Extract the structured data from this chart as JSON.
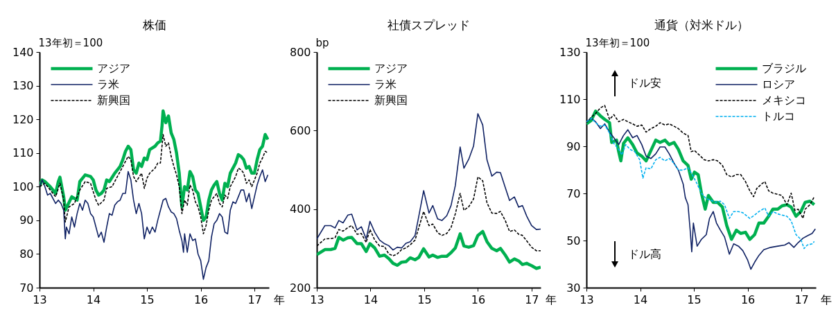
{
  "chart_data": [
    {
      "type": "line",
      "title": "株価",
      "ylabel": "13年初＝100",
      "xlabel": "年",
      "xlim": [
        13,
        17.27
      ],
      "xticks": [
        13,
        14,
        15,
        16,
        17
      ],
      "ylim": [
        70,
        140
      ],
      "yticks": [
        70,
        80,
        90,
        100,
        110,
        120,
        130,
        140
      ],
      "legend": "top left",
      "series": [
        {
          "name": "アジア",
          "color": "#00b050",
          "x": [
            13,
            13.05,
            13.1,
            13.2,
            13.3,
            13.35,
            13.38,
            13.45,
            13.48,
            13.6,
            13.7,
            13.75,
            13.85,
            13.95,
            14,
            14.05,
            14.1,
            14.15,
            14.2,
            14.25,
            14.3,
            14.4,
            14.5,
            14.55,
            14.6,
            14.65,
            14.7,
            14.75,
            14.8,
            14.85,
            14.9,
            14.95,
            15,
            15.05,
            15.15,
            15.2,
            15.25,
            15.28,
            15.3,
            15.35,
            15.4,
            15.45,
            15.5,
            15.55,
            15.6,
            15.65,
            15.7,
            15.75,
            15.8,
            15.85,
            15.9,
            15.95,
            16,
            16.05,
            16.1,
            16.15,
            16.2,
            16.25,
            16.3,
            16.35,
            16.4,
            16.45,
            16.5,
            16.55,
            16.65,
            16.7,
            16.75,
            16.8,
            16.85,
            16.9,
            16.95,
            17,
            17.05,
            17.1,
            17.15,
            17.2,
            17.25
          ],
          "values": [
            100,
            102,
            101.5,
            100,
            98,
            101.5,
            102.8,
            97,
            93,
            97,
            96,
            101.5,
            103.5,
            103,
            102,
            99,
            97.5,
            98,
            99,
            102,
            101.5,
            104,
            106,
            108,
            110.5,
            112,
            111,
            105,
            104,
            107,
            106,
            108.5,
            108,
            111,
            112,
            113,
            113.5,
            118,
            122.5,
            119,
            121,
            116,
            114,
            110,
            104,
            94,
            100,
            99,
            104.5,
            103,
            99,
            98,
            94,
            90,
            91,
            96,
            99,
            100.5,
            101.5,
            98,
            96,
            101,
            100,
            104,
            107,
            109.5,
            109,
            108,
            105.5,
            106,
            104,
            104,
            108,
            111,
            112,
            115.5,
            114
          ]
        },
        {
          "name": "ラ米",
          "color": "#0f2163",
          "x": [
            13,
            13.05,
            13.1,
            13.15,
            13.2,
            13.3,
            13.35,
            13.4,
            13.45,
            13.48,
            13.5,
            13.55,
            13.6,
            13.65,
            13.7,
            13.75,
            13.8,
            13.85,
            13.9,
            13.95,
            14,
            14.05,
            14.1,
            14.15,
            14.2,
            14.25,
            14.3,
            14.35,
            14.4,
            14.45,
            14.5,
            14.55,
            14.6,
            14.65,
            14.7,
            14.75,
            14.8,
            14.85,
            14.9,
            14.95,
            15,
            15.05,
            15.1,
            15.15,
            15.2,
            15.25,
            15.3,
            15.35,
            15.4,
            15.45,
            15.5,
            15.55,
            15.6,
            15.65,
            15.68,
            15.7,
            15.75,
            15.8,
            15.85,
            15.9,
            15.95,
            16,
            16.05,
            16.1,
            16.15,
            16.2,
            16.25,
            16.3,
            16.35,
            16.4,
            16.45,
            16.5,
            16.55,
            16.6,
            16.65,
            16.7,
            16.75,
            16.8,
            16.85,
            16.9,
            16.95,
            17,
            17.05,
            17.1,
            17.15,
            17.2,
            17.25
          ],
          "values": [
            100,
            102,
            100,
            97.5,
            98,
            95,
            96,
            95,
            93,
            84.5,
            88,
            86,
            91,
            88,
            92,
            95,
            93,
            96,
            95,
            92,
            91,
            88,
            85,
            86.5,
            83.5,
            88,
            92,
            91.5,
            94.5,
            95.5,
            96,
            98,
            98,
            104.5,
            102,
            96,
            92,
            95,
            92,
            84.5,
            88,
            86,
            88,
            86.5,
            90,
            93,
            96,
            96.5,
            94,
            92.5,
            92,
            90.5,
            87,
            84,
            80.5,
            86,
            80.5,
            86,
            84,
            84.5,
            80,
            78,
            72.5,
            76,
            78,
            85,
            89,
            90,
            92,
            91,
            86.5,
            86,
            93,
            95.5,
            95,
            97,
            99,
            99,
            95.5,
            98,
            93.5,
            97,
            100.5,
            103,
            105,
            101.5,
            103.5
          ]
        },
        {
          "name": "新興国",
          "color": "#000000",
          "line_style": "dashed",
          "x": [
            13,
            13.1,
            13.2,
            13.3,
            13.38,
            13.45,
            13.48,
            13.55,
            13.65,
            13.75,
            13.85,
            13.95,
            14.05,
            14.1,
            14.2,
            14.25,
            14.35,
            14.45,
            14.55,
            14.65,
            14.7,
            14.75,
            14.8,
            14.9,
            14.95,
            15,
            15.05,
            15.15,
            15.2,
            15.25,
            15.3,
            15.35,
            15.4,
            15.45,
            15.5,
            15.55,
            15.6,
            15.65,
            15.7,
            15.75,
            15.8,
            15.85,
            15.9,
            15.95,
            16,
            16.05,
            16.1,
            16.15,
            16.2,
            16.25,
            16.3,
            16.35,
            16.4,
            16.45,
            16.5,
            16.55,
            16.65,
            16.7,
            16.75,
            16.8,
            16.85,
            16.9,
            16.95,
            17,
            17.05,
            17.1,
            17.15,
            17.2,
            17.25
          ],
          "values": [
            100,
            101,
            99,
            97,
            101,
            96,
            89.5,
            94,
            95,
            99,
            101.5,
            101,
            96,
            94.5,
            96,
            99.5,
            100,
            103,
            106,
            109,
            108,
            103,
            101.5,
            104,
            99.5,
            102.5,
            104,
            105.5,
            107,
            107,
            115.5,
            112,
            113,
            109,
            106,
            103.5,
            100,
            92,
            96,
            94.5,
            100.5,
            99,
            95.5,
            94,
            91,
            86,
            88.5,
            93,
            96,
            97,
            98,
            95,
            94,
            97.5,
            96.5,
            100,
            103,
            105.5,
            105,
            104,
            101,
            102,
            100,
            102,
            104,
            107,
            108.5,
            110.5,
            110
          ]
        }
      ]
    },
    {
      "type": "line",
      "title": "社債スプレッド",
      "ylabel": "bp",
      "xlabel": "年",
      "xlim": [
        13,
        17.17
      ],
      "xticks": [
        13,
        14,
        15,
        16,
        17
      ],
      "ylim": [
        200,
        800
      ],
      "yticks": [
        200,
        400,
        600,
        800
      ],
      "legend": "top left",
      "x": [
        13,
        13.15,
        13.26,
        13.34,
        13.41,
        13.49,
        13.58,
        13.65,
        13.75,
        13.83,
        13.92,
        13.99,
        14.08,
        14.17,
        14.26,
        14.34,
        14.42,
        14.5,
        14.58,
        14.66,
        14.74,
        14.83,
        14.9,
        14.99,
        15.09,
        15.16,
        15.25,
        15.33,
        15.42,
        15.5,
        15.58,
        15.67,
        15.74,
        15.83,
        15.92,
        16,
        16.09,
        16.17,
        16.26,
        16.35,
        16.42,
        16.51,
        16.59,
        16.68,
        16.76,
        16.83,
        16.91,
        17,
        17.09,
        17.17
      ],
      "series": [
        {
          "name": "アジア",
          "color": "#00b050",
          "values": [
            284,
            297,
            297,
            300,
            328,
            321,
            327,
            328,
            312,
            312,
            292,
            312,
            301,
            280,
            283,
            274,
            262,
            257,
            265,
            266,
            276,
            271,
            277,
            299,
            278,
            283,
            277,
            280,
            280,
            289,
            301,
            337,
            306,
            303,
            307,
            333,
            343,
            317,
            300,
            294,
            300,
            283,
            265,
            273,
            268,
            259,
            262,
            256,
            249,
            252
          ]
        },
        {
          "name": "ラ米",
          "color": "#0f2163",
          "values": [
            324,
            358,
            358,
            352,
            371,
            365,
            385,
            387,
            347,
            355,
            324,
            369,
            341,
            321,
            312,
            307,
            296,
            303,
            301,
            313,
            317,
            333,
            382,
            447,
            390,
            409,
            375,
            371,
            383,
            409,
            460,
            558,
            504,
            527,
            561,
            643,
            614,
            525,
            484,
            494,
            493,
            455,
            422,
            431,
            405,
            409,
            382,
            358,
            348,
            349
          ]
        },
        {
          "name": "新興国",
          "color": "#000000",
          "line_style": "dashed",
          "values": [
            306,
            324,
            325,
            327,
            348,
            344,
            353,
            358,
            336,
            338,
            315,
            348,
            321,
            306,
            305,
            286,
            281,
            286,
            297,
            301,
            309,
            321,
            353,
            394,
            358,
            362,
            340,
            333,
            338,
            353,
            388,
            440,
            397,
            406,
            426,
            482,
            472,
            416,
            390,
            389,
            394,
            371,
            343,
            347,
            336,
            333,
            319,
            303,
            294,
            294
          ]
        }
      ]
    },
    {
      "type": "line",
      "title": "通貨（対米ドル）",
      "ylabel": "13年初＝100",
      "xlabel": "年",
      "xlim": [
        13,
        17.27
      ],
      "xticks": [
        13,
        14,
        15,
        16,
        17
      ],
      "ylim": [
        30,
        130
      ],
      "yticks": [
        30,
        50,
        70,
        90,
        110,
        130
      ],
      "legend": "top right",
      "annotations": [
        "ドル安",
        "ドル高"
      ],
      "series": [
        {
          "name": "ブラジル",
          "color": "#00b050",
          "x": [
            13,
            13.09,
            13.17,
            13.26,
            13.34,
            13.43,
            13.47,
            13.56,
            13.6,
            13.64,
            13.69,
            13.77,
            13.86,
            13.94,
            14.03,
            14.11,
            14.2,
            14.29,
            14.37,
            14.46,
            14.54,
            14.63,
            14.71,
            14.8,
            14.89,
            14.95,
            15.01,
            15.08,
            15.14,
            15.21,
            15.27,
            15.36,
            15.44,
            15.53,
            15.61,
            15.7,
            15.79,
            15.87,
            15.96,
            16.04,
            16.13,
            16.21,
            16.3,
            16.39,
            16.47,
            16.56,
            16.64,
            16.73,
            16.81,
            16.9,
            16.99,
            17.07,
            17.16,
            17.24
          ],
          "values": [
            99.5,
            101,
            104.9,
            102.9,
            101.4,
            100,
            91.6,
            92.6,
            87.7,
            83.8,
            91.2,
            93.6,
            90.7,
            87.2,
            85.8,
            83.8,
            88.2,
            92.6,
            91.6,
            92.6,
            90.7,
            91.6,
            88.7,
            83.8,
            81.9,
            76,
            79,
            77.9,
            70.1,
            63.3,
            69.1,
            66.2,
            66.2,
            64.2,
            56.4,
            50.5,
            54.4,
            53,
            53.5,
            50.5,
            52.5,
            57.4,
            57.4,
            60.3,
            63.3,
            63.3,
            64.7,
            65.2,
            64.2,
            60.3,
            62.3,
            66.2,
            66.7,
            65.2
          ]
        },
        {
          "name": "ロシア",
          "color": "#0f2163",
          "x": [
            13,
            13.09,
            13.17,
            13.26,
            13.34,
            13.43,
            13.51,
            13.6,
            13.69,
            13.77,
            13.86,
            13.94,
            14.03,
            14.11,
            14.2,
            14.29,
            14.37,
            14.46,
            14.54,
            14.63,
            14.71,
            14.8,
            14.84,
            14.89,
            14.93,
            14.96,
            14.99,
            15.06,
            15.14,
            15.23,
            15.29,
            15.36,
            15.42,
            15.49,
            15.57,
            15.66,
            15.74,
            15.83,
            15.91,
            16,
            16.06,
            16.13,
            16.21,
            16.3,
            16.43,
            16.56,
            16.69,
            16.77,
            16.86,
            16.94,
            17.03,
            17.11,
            17.2,
            17.26
          ],
          "values": [
            100.4,
            101.9,
            100.4,
            97.5,
            99.5,
            96,
            93.6,
            90.7,
            94.6,
            97,
            93.6,
            94.6,
            90.7,
            85.8,
            84.8,
            86.8,
            89.7,
            89.7,
            86.8,
            82.8,
            79.9,
            74,
            68.2,
            65.2,
            54.5,
            45.2,
            57.4,
            47.6,
            50.5,
            52.5,
            59.4,
            62.3,
            57.4,
            54.5,
            51.5,
            44.2,
            48.6,
            47.6,
            45.7,
            41.7,
            37.8,
            40.8,
            43.7,
            46.1,
            47.1,
            47.6,
            48.1,
            49.1,
            47.1,
            49.1,
            51,
            52,
            53,
            54.9
          ]
        },
        {
          "name": "メキシコ",
          "color": "#000000",
          "line_style": "dashed",
          "x": [
            13,
            13.09,
            13.17,
            13.26,
            13.34,
            13.43,
            13.51,
            13.6,
            13.69,
            13.77,
            13.86,
            13.94,
            14.03,
            14.11,
            14.2,
            14.29,
            14.37,
            14.46,
            14.54,
            14.63,
            14.71,
            14.8,
            14.89,
            14.95,
            15.01,
            15.1,
            15.19,
            15.27,
            15.36,
            15.44,
            15.53,
            15.61,
            15.7,
            15.79,
            15.87,
            15.96,
            16.04,
            16.11,
            16.17,
            16.26,
            16.32,
            16.39,
            16.47,
            16.56,
            16.64,
            16.73,
            16.81,
            16.88,
            16.94,
            17.03,
            17.07,
            17.16,
            17.24
          ],
          "values": [
            100,
            102.4,
            103.9,
            106.3,
            107.3,
            101.4,
            103.4,
            100.4,
            101.4,
            100.4,
            99.5,
            98.5,
            99,
            96,
            97.5,
            98.5,
            100,
            99,
            99.5,
            98.5,
            97.5,
            95.6,
            94.6,
            87.7,
            88.2,
            86.3,
            84.3,
            83.8,
            84.3,
            83.8,
            81.9,
            78,
            77,
            78,
            78,
            75,
            71.1,
            68.6,
            72.1,
            74,
            75,
            71.1,
            70.1,
            69.6,
            69.1,
            65.2,
            70.1,
            62.8,
            63.3,
            59.4,
            63.3,
            65.2,
            68.6
          ]
        },
        {
          "name": "トルコ",
          "color": "#00b0f0",
          "line_style": "dashed",
          "x": [
            13,
            13.09,
            13.17,
            13.26,
            13.34,
            13.43,
            13.51,
            13.6,
            13.66,
            13.73,
            13.81,
            13.9,
            13.99,
            14.05,
            14.11,
            14.2,
            14.29,
            14.37,
            14.46,
            14.54,
            14.63,
            14.71,
            14.8,
            14.89,
            14.97,
            15.06,
            15.14,
            15.23,
            15.31,
            15.4,
            15.49,
            15.57,
            15.66,
            15.74,
            15.83,
            15.91,
            16.04,
            16.13,
            16.21,
            16.32,
            16.39,
            16.47,
            16.56,
            16.64,
            16.73,
            16.81,
            16.9,
            16.99,
            17.05,
            17.11,
            17.2,
            17.24
          ],
          "values": [
            100.4,
            101.9,
            100,
            98.5,
            99,
            95.6,
            91.2,
            88.7,
            86.3,
            90.7,
            88.7,
            87.7,
            84.3,
            76.5,
            80.9,
            80.4,
            84.3,
            85.3,
            83.8,
            84.8,
            82.8,
            79.9,
            79.9,
            80.9,
            77.9,
            74,
            70.1,
            67.7,
            67.2,
            66.2,
            66.7,
            65.2,
            59.4,
            62.3,
            62.3,
            61.8,
            59.4,
            60.8,
            62.3,
            63.8,
            60.3,
            62.3,
            61.3,
            60.8,
            60.3,
            58.4,
            52.5,
            50.5,
            46.6,
            48.1,
            48.6,
            49.6
          ]
        }
      ]
    }
  ]
}
